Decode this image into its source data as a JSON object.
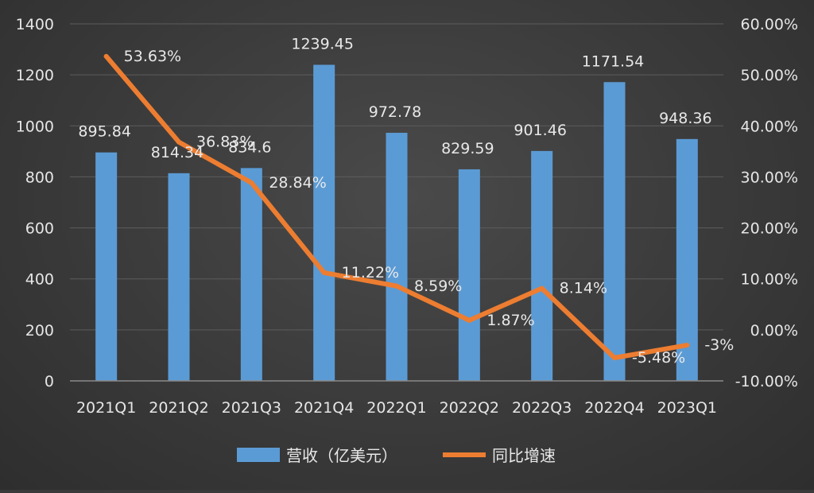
{
  "chart_data": {
    "type": "bar",
    "categories": [
      "2021Q1",
      "2021Q2",
      "2021Q3",
      "2021Q4",
      "2022Q1",
      "2022Q2",
      "2022Q3",
      "2022Q4",
      "2023Q1"
    ],
    "series": [
      {
        "name": "营收（亿美元）",
        "type": "bar",
        "axis": "left",
        "values": [
          895.84,
          814.34,
          834.6,
          1239.45,
          972.78,
          829.59,
          901.46,
          1171.54,
          948.36
        ],
        "labels": [
          "895.84",
          "814.34",
          "834.6",
          "1239.45",
          "972.78",
          "829.59",
          "901.46",
          "1171.54",
          "948.36"
        ],
        "color": "#5b9bd5"
      },
      {
        "name": "同比增速",
        "type": "line",
        "axis": "right",
        "values": [
          53.63,
          36.83,
          28.84,
          11.22,
          8.59,
          1.87,
          8.14,
          -5.48,
          -3
        ],
        "labels": [
          "53.63%",
          "36.83%",
          "28.84%",
          "11.22%",
          "8.59%",
          "1.87%",
          "8.14%",
          "-5.48%",
          "-3%"
        ],
        "color": "#ed7d31"
      }
    ],
    "y_left": {
      "ylim": [
        0,
        1400
      ],
      "ticks": [
        "0",
        "200",
        "400",
        "600",
        "800",
        "1000",
        "1200",
        "1400"
      ]
    },
    "y_right": {
      "ylim": [
        -10,
        60
      ],
      "ticks": [
        "-10.00%",
        "0.00%",
        "10.00%",
        "20.00%",
        "30.00%",
        "40.00%",
        "50.00%",
        "60.00%"
      ]
    },
    "grid": true,
    "legend": "bottom"
  }
}
